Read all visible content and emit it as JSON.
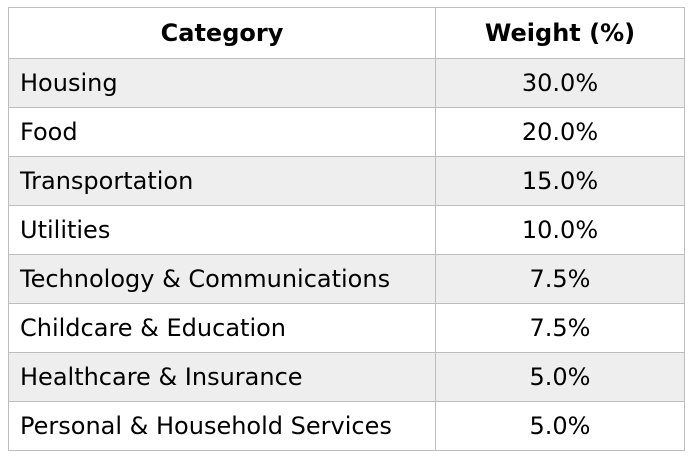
{
  "chart_data": {
    "type": "table",
    "columns": [
      "Category",
      "Weight (%)"
    ],
    "rows": [
      {
        "category": "Housing",
        "weight": "30.0%"
      },
      {
        "category": "Food",
        "weight": "20.0%"
      },
      {
        "category": "Transportation",
        "weight": "15.0%"
      },
      {
        "category": "Utilities",
        "weight": "10.0%"
      },
      {
        "category": "Technology & Communications",
        "weight": "7.5%"
      },
      {
        "category": "Childcare & Education",
        "weight": "7.5%"
      },
      {
        "category": "Healthcare & Insurance",
        "weight": "5.0%"
      },
      {
        "category": "Personal & Household Services",
        "weight": "5.0%"
      }
    ],
    "colors": {
      "stripe": "#eeeeee",
      "border": "#bdbdbd"
    }
  }
}
